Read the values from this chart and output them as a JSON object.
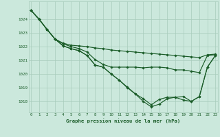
{
  "bg_color": "#cbe8dc",
  "line_color": "#1a5c28",
  "grid_color": "#a8ccbc",
  "xlabel": "Graphe pression niveau de la mer (hPa)",
  "ylim": [
    1017.2,
    1025.3
  ],
  "xlim": [
    -0.3,
    23.3
  ],
  "yticks": [
    1018,
    1019,
    1020,
    1021,
    1022,
    1023,
    1024
  ],
  "xticks": [
    0,
    1,
    2,
    3,
    4,
    5,
    6,
    7,
    8,
    9,
    10,
    11,
    12,
    13,
    14,
    15,
    16,
    17,
    18,
    19,
    20,
    21,
    22,
    23
  ],
  "series": [
    [
      1024.65,
      1024.0,
      1023.25,
      1022.55,
      1022.25,
      1022.1,
      1022.05,
      1022.0,
      1021.9,
      1021.85,
      1021.75,
      1021.7,
      1021.65,
      1021.6,
      1021.55,
      1021.5,
      1021.45,
      1021.4,
      1021.35,
      1021.3,
      1021.25,
      1021.2,
      1021.4,
      1021.45
    ],
    [
      1024.65,
      1024.0,
      1023.25,
      1022.55,
      1022.2,
      1022.0,
      1021.85,
      1021.6,
      1021.05,
      1020.7,
      1020.5,
      1020.5,
      1020.5,
      1020.5,
      1020.45,
      1020.5,
      1020.5,
      1020.45,
      1020.3,
      1020.3,
      1020.2,
      1020.1,
      1021.35,
      1021.4
    ],
    [
      1024.65,
      1024.0,
      1023.25,
      1022.55,
      1022.05,
      1021.85,
      1021.7,
      1021.35,
      1020.65,
      1020.5,
      1020.0,
      1019.55,
      1019.0,
      1018.55,
      1018.2,
      1017.75,
      1018.15,
      1018.3,
      1018.3,
      1018.35,
      1018.0,
      1018.35,
      1020.5,
      1021.35
    ],
    [
      1024.65,
      1024.0,
      1023.25,
      1022.55,
      1022.05,
      1021.85,
      1021.7,
      1021.35,
      1020.65,
      1020.5,
      1020.0,
      1019.55,
      1019.05,
      1018.55,
      1018.0,
      1017.6,
      1017.8,
      1018.2,
      1018.3,
      1018.1,
      1018.0,
      1018.35,
      1020.5,
      1021.35
    ]
  ]
}
